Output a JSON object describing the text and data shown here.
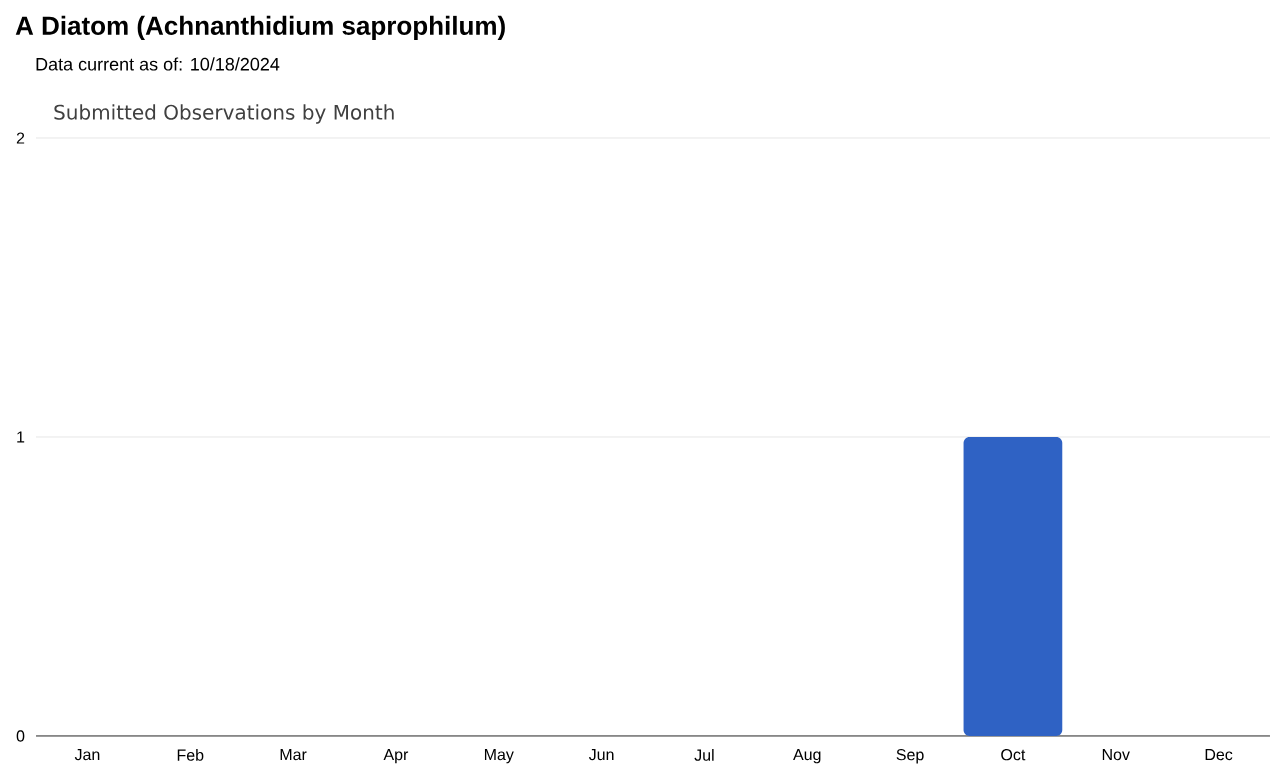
{
  "chart_data": {
    "type": "bar",
    "title": "A Diatom   (Achnanthidium saprophilum)",
    "subtitle": "Submitted Observations by Month",
    "annotations": [
      "Data current as of: 10/18/2024"
    ],
    "categories": [
      "Jan",
      "Feb",
      "Mar",
      "Apr",
      "May",
      "Jun",
      "Jul",
      "Aug",
      "Sep",
      "Oct",
      "Nov",
      "Dec"
    ],
    "values": [
      0,
      0,
      0,
      0,
      0,
      0,
      0,
      0,
      0,
      1,
      0,
      0
    ],
    "color": "#2f62c4",
    "ylim": [
      0,
      2
    ],
    "yticks": [
      0,
      1,
      2
    ],
    "grid": "y"
  }
}
